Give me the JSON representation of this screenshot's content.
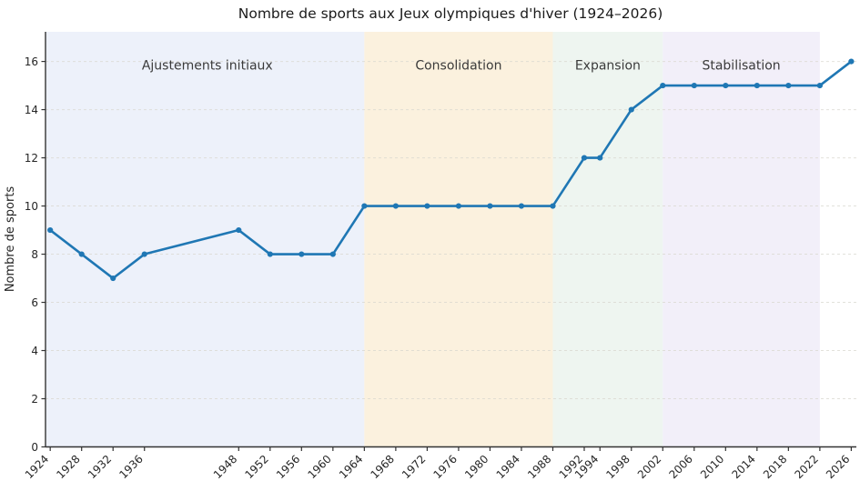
{
  "title": "Nombre de sports aux Jeux olympiques d'hiver (1924–2026)",
  "chart_data": {
    "type": "line",
    "title": "Nombre de sports aux Jeux olympiques d'hiver (1924–2026)",
    "xlabel": "",
    "ylabel": "Nombre de sports",
    "x": [
      1924,
      1928,
      1932,
      1936,
      1948,
      1952,
      1956,
      1960,
      1964,
      1968,
      1972,
      1976,
      1980,
      1984,
      1988,
      1992,
      1994,
      1998,
      2002,
      2006,
      2010,
      2014,
      2018,
      2022,
      2026
    ],
    "series": [
      {
        "name": "Nombre de sports",
        "values": [
          9,
          8,
          7,
          8,
          9,
          8,
          8,
          8,
          10,
          10,
          10,
          10,
          10,
          10,
          10,
          12,
          12,
          14,
          15,
          15,
          15,
          15,
          15,
          15,
          16
        ],
        "color": "#1f77b4"
      }
    ],
    "xticks": [
      1924,
      1928,
      1932,
      1936,
      1948,
      1952,
      1956,
      1960,
      1964,
      1968,
      1972,
      1976,
      1980,
      1984,
      1988,
      1992,
      1994,
      1998,
      2002,
      2006,
      2010,
      2014,
      2018,
      2022,
      2026
    ],
    "yticks": [
      0,
      2,
      4,
      6,
      8,
      10,
      12,
      14,
      16
    ],
    "xlim": [
      1923.4,
      2026.65
    ],
    "ylim": [
      0,
      17.23
    ],
    "grid": "horizontal-dashed",
    "legend": "none",
    "regions": [
      {
        "label": "Ajustements initiaux",
        "from": 1923.4,
        "to": 1964,
        "color": "#edf1fa",
        "label_year": 1944
      },
      {
        "label": "Consolidation",
        "from": 1964,
        "to": 1988,
        "color": "#fbf1de",
        "label_year": 1976
      },
      {
        "label": "Expansion",
        "from": 1988,
        "to": 2002,
        "color": "#eef5f0",
        "label_year": 1995
      },
      {
        "label": "Stabilisation",
        "from": 2002,
        "to": 2022,
        "color": "#f2eff9",
        "label_year": 2012
      }
    ],
    "region_label_value": 15.85,
    "colors": {
      "line": "#1f77b4",
      "grid": "#d9d7cf",
      "axis": "#333333",
      "text": "#262626"
    }
  }
}
